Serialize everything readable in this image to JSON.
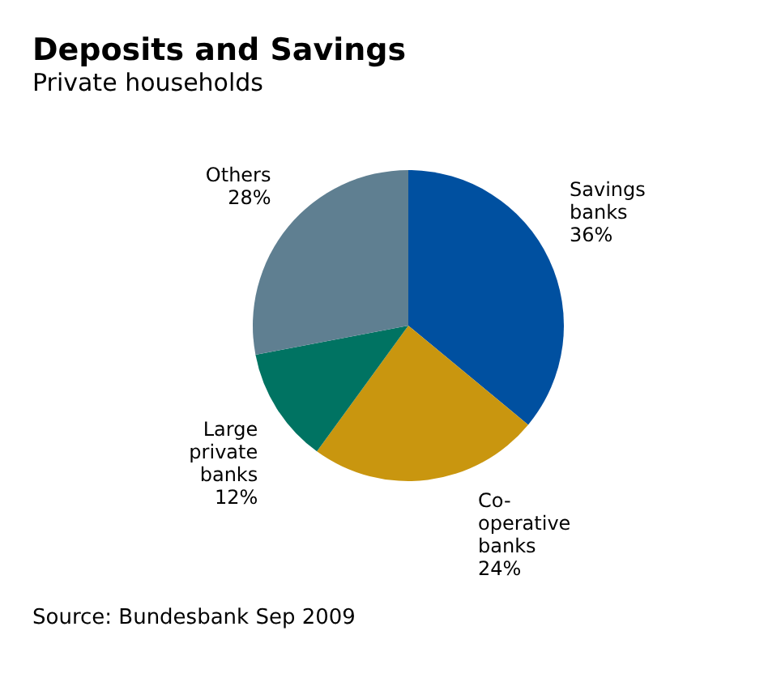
{
  "chart_data": {
    "type": "pie",
    "title": "Deposits and Savings",
    "subtitle": "Private households",
    "categories": [
      "Savings banks",
      "Co-operative banks",
      "Large private banks",
      "Others"
    ],
    "values": [
      36,
      24,
      12,
      28
    ],
    "colors": [
      "#0050a0",
      "#c9960f",
      "#007362",
      "#5f7f91"
    ],
    "value_labels": [
      "36%",
      "24%",
      "12%",
      "28%"
    ],
    "annotations": [
      "Source: Bundesbank Sep 2009"
    ]
  }
}
